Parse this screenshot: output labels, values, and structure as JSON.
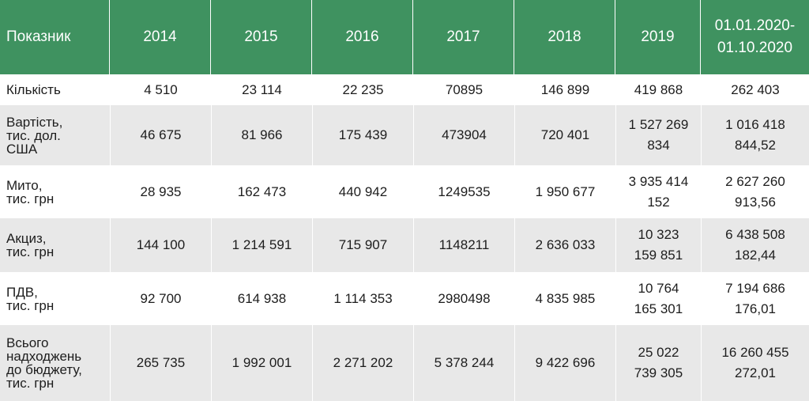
{
  "table": {
    "headers": [
      "Показник",
      "2014",
      "2015",
      "2016",
      "2017",
      "2018",
      "2019",
      "01.01.2020-\n01.10.2020"
    ],
    "rows": [
      {
        "label": "Кількість",
        "cells": [
          "4 510",
          "23 114",
          "22 235",
          "70895",
          "146 899",
          "419 868",
          "262 403"
        ]
      },
      {
        "label": "Вартість,\nтис. дол.\nСША",
        "cells": [
          "46 675",
          "81 966",
          "175 439",
          "473904",
          "720 401",
          "1 527 269\n834",
          "1 016 418\n844,52"
        ]
      },
      {
        "label": "Мито,\nтис. грн",
        "cells": [
          "28 935",
          "162 473",
          "440 942",
          "1249535",
          "1 950 677",
          "3 935 414\n152",
          "2 627 260\n913,56"
        ]
      },
      {
        "label": "Акциз,\nтис. грн",
        "cells": [
          "144 100",
          "1 214 591",
          "715 907",
          "1148211",
          "2 636 033",
          "10 323\n159 851",
          "6 438 508\n182,44"
        ]
      },
      {
        "label": "ПДВ,\nтис. грн",
        "cells": [
          "92 700",
          "614 938",
          "1 114 353",
          "2980498",
          "4 835 985",
          "10 764\n165 301",
          "7 194 686\n176,01"
        ]
      },
      {
        "label": "Всього\nнадходжень\nдо бюджету,\nтис. грн",
        "cells": [
          "265 735",
          "1 992 001",
          "2 271 202",
          "5 378 244",
          "9 422 696",
          "25 022\n739 305",
          "16 260 455\n272,01"
        ]
      }
    ]
  },
  "colors": {
    "header_bg": "#3f9260",
    "stripe_bg": "#e8e8e8",
    "text": "#1d1d1d"
  }
}
